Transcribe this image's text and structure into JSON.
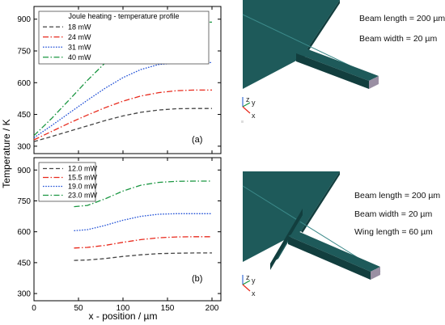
{
  "chart_data": [
    {
      "type": "line",
      "panel_label": "(a)",
      "legend_title": "Joule heating - temperature profile",
      "legend_placement": "top-left",
      "xlabel": "x - position / µm",
      "ylabel": "Temperature / K",
      "xlim": [
        0,
        210
      ],
      "ylim": [
        265,
        960
      ],
      "xticks": [
        "0",
        "50",
        "100",
        "150",
        "200"
      ],
      "yticks": [
        "300",
        "450",
        "600",
        "750",
        "900"
      ],
      "series": [
        {
          "name": "18 mW",
          "color": "#444444",
          "dash": "dashed",
          "x": [
            0,
            20,
            40,
            60,
            80,
            100,
            120,
            140,
            160,
            180,
            200
          ],
          "y": [
            322,
            346,
            371,
            396,
            421,
            443,
            460,
            471,
            477,
            478,
            478
          ]
        },
        {
          "name": "24 mW",
          "color": "#e8291c",
          "dash": "dashdot",
          "x": [
            0,
            20,
            40,
            60,
            80,
            100,
            120,
            140,
            160,
            180,
            200
          ],
          "y": [
            330,
            370,
            410,
            447,
            482,
            513,
            537,
            553,
            562,
            565,
            565
          ]
        },
        {
          "name": "31 mW",
          "color": "#1f4fd6",
          "dash": "dotted",
          "x": [
            0,
            20,
            40,
            60,
            80,
            100,
            120,
            140,
            160,
            180,
            200
          ],
          "y": [
            340,
            398,
            458,
            517,
            574,
            624,
            662,
            686,
            694,
            695,
            695
          ]
        },
        {
          "name": "40 mW",
          "color": "#1a9641",
          "dash": "dashdot",
          "x": [
            0,
            20,
            40,
            60,
            80,
            100,
            120,
            140,
            160,
            180,
            200
          ],
          "y": [
            350,
            432,
            521,
            611,
            694,
            767,
            828,
            868,
            884,
            886,
            886
          ]
        }
      ]
    },
    {
      "type": "line",
      "panel_label": "(b)",
      "legend_placement": "top-left",
      "xlabel": "x - position / µm",
      "ylabel": "Temperature / K",
      "xlim": [
        0,
        210
      ],
      "ylim": [
        265,
        960
      ],
      "xticks": [
        "0",
        "50",
        "100",
        "150",
        "200"
      ],
      "yticks": [
        "300",
        "450",
        "600",
        "750",
        "900"
      ],
      "series": [
        {
          "name": "12.0 mW",
          "color": "#444444",
          "dash": "dashed",
          "x": [
            45,
            60,
            80,
            100,
            120,
            140,
            160,
            180,
            200
          ],
          "y": [
            461,
            463,
            470,
            480,
            488,
            494,
            496,
            497,
            497
          ]
        },
        {
          "name": "15.5 mW",
          "color": "#e8291c",
          "dash": "dashdot",
          "x": [
            45,
            60,
            80,
            100,
            120,
            140,
            160,
            180,
            200
          ],
          "y": [
            521,
            524,
            534,
            549,
            562,
            571,
            575,
            576,
            576
          ]
        },
        {
          "name": "19.0 mW",
          "color": "#1f4fd6",
          "dash": "dotted",
          "x": [
            45,
            60,
            80,
            100,
            120,
            140,
            160,
            180,
            200
          ],
          "y": [
            605,
            610,
            631,
            656,
            675,
            685,
            688,
            688,
            688
          ]
        },
        {
          "name": "23.0 mW",
          "color": "#1a9641",
          "dash": "dashdot",
          "x": [
            45,
            60,
            80,
            100,
            120,
            140,
            160,
            180,
            200
          ],
          "y": [
            722,
            728,
            760,
            798,
            826,
            840,
            845,
            846,
            846
          ]
        }
      ]
    }
  ],
  "diagram_top": {
    "texts": [
      "Beam length = 200 µm",
      "Beam width = 20 µm"
    ],
    "axes_labels": [
      "z",
      "y",
      "x"
    ]
  },
  "diagram_bottom": {
    "texts": [
      "Beam length = 200 µm",
      "Beam width = 20 µm",
      "Wing length = 60 µm"
    ],
    "axes_labels": [
      "z",
      "y",
      "x"
    ]
  },
  "colors": {
    "surface_top": "#1e5a5a",
    "surface_dark": "#123e3e",
    "beam_side": "#9a8fa3"
  }
}
